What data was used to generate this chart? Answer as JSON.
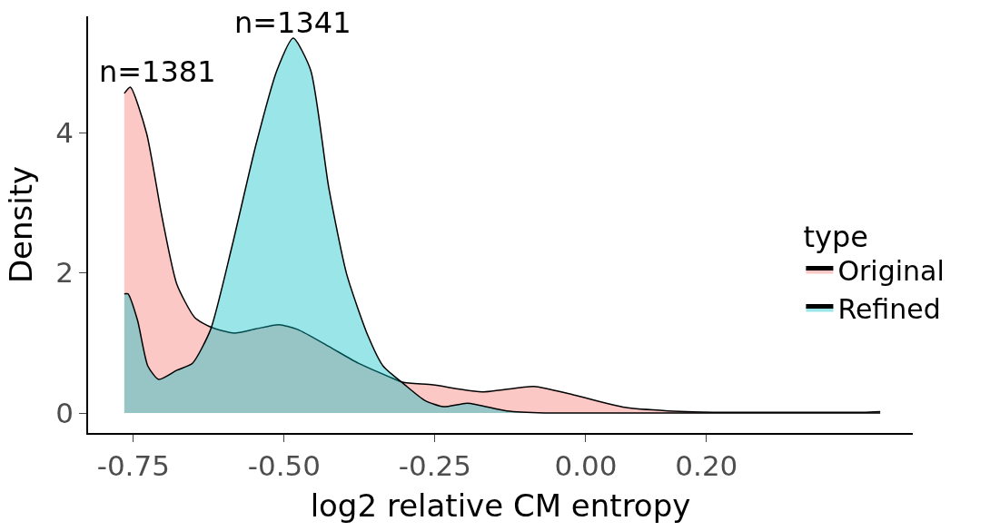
{
  "chart_data": {
    "type": "area",
    "xlabel": "log2 relative CM entropy",
    "ylabel": "Density",
    "legend_title": "type",
    "xlim": [
      -0.825,
      0.542
    ],
    "ylim": [
      -0.285,
      5.66
    ],
    "xticks": [
      {
        "value": -0.75,
        "label": "-0.75"
      },
      {
        "value": -0.5,
        "label": "-0.50"
      },
      {
        "value": -0.25,
        "label": "-0.25"
      },
      {
        "value": 0,
        "label": "0.00"
      },
      {
        "value": 0.2,
        "label": "0.20"
      }
    ],
    "yticks": [
      0,
      2,
      4
    ],
    "legend": "right",
    "annotations": [
      "n=1381",
      "n=1341"
    ],
    "series": [
      {
        "name": "Original",
        "color": "#f8766d",
        "x": [
          -0.765,
          -0.755,
          -0.728,
          -0.703,
          -0.678,
          -0.648,
          -0.62,
          -0.583,
          -0.547,
          -0.509,
          -0.477,
          -0.426,
          -0.377,
          -0.327,
          -0.304,
          -0.253,
          -0.172,
          -0.086,
          -0.021,
          0.065,
          0.136,
          0.211,
          0.3,
          0.4,
          0.46,
          0.488
        ],
        "values": [
          4.56,
          4.65,
          3.99,
          2.82,
          1.84,
          1.36,
          1.22,
          1.14,
          1.2,
          1.26,
          1.19,
          0.95,
          0.71,
          0.52,
          0.44,
          0.4,
          0.3,
          0.38,
          0.26,
          0.08,
          0.03,
          0.01,
          0.01,
          0.01,
          0.01,
          0.02
        ]
      },
      {
        "name": "Refined",
        "color": "#00bfc4",
        "x": [
          -0.765,
          -0.759,
          -0.743,
          -0.726,
          -0.708,
          -0.678,
          -0.652,
          -0.622,
          -0.587,
          -0.547,
          -0.512,
          -0.485,
          -0.456,
          -0.426,
          -0.396,
          -0.361,
          -0.336,
          -0.301,
          -0.267,
          -0.236,
          -0.196,
          -0.131,
          -0.068,
          0.0,
          0.2,
          0.488
        ],
        "values": [
          1.7,
          1.7,
          1.32,
          0.67,
          0.48,
          0.61,
          0.71,
          1.19,
          2.36,
          3.82,
          4.89,
          5.35,
          4.89,
          3.21,
          1.97,
          1.1,
          0.67,
          0.41,
          0.18,
          0.09,
          0.14,
          0.03,
          0.0,
          0.0,
          0.0,
          0.0
        ]
      }
    ]
  }
}
